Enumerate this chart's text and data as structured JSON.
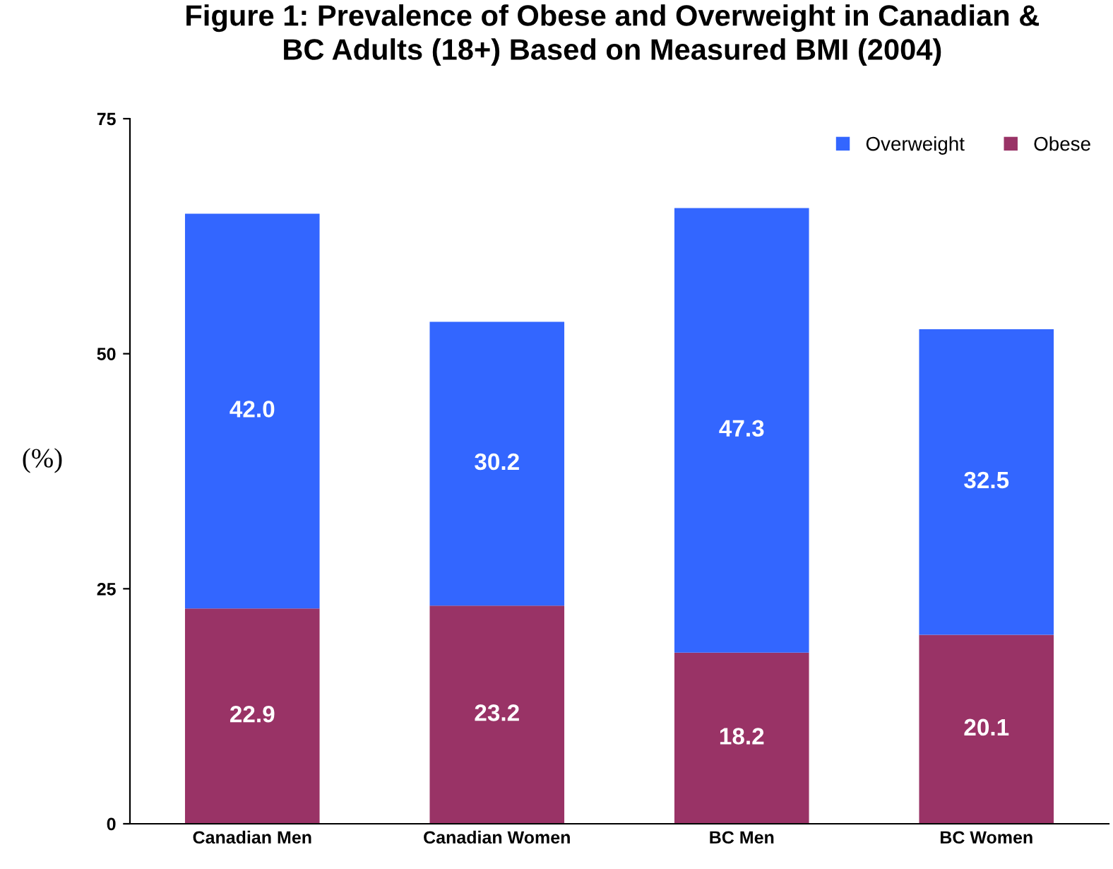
{
  "chart_data": {
    "type": "bar",
    "title": "Figure 1: Prevalence of Obese and Overweight in Canadian &\nBC Adults (18+) Based on Measured BMI (2004)",
    "ylabel": "(%)",
    "categories": [
      "Canadian Men",
      "Canadian Women",
      "BC Men",
      "BC Women"
    ],
    "series": [
      {
        "name": "Obese",
        "color": "#993366",
        "values": [
          22.9,
          23.2,
          18.2,
          20.1
        ],
        "value_labels": [
          "22.9",
          "23.2",
          "18.2",
          "20.1"
        ]
      },
      {
        "name": "Overweight",
        "color": "#3366ff",
        "values": [
          42.0,
          30.2,
          47.3,
          32.5
        ],
        "value_labels": [
          "42.0",
          "30.2",
          "47.3",
          "32.5"
        ]
      }
    ],
    "stacked": true,
    "ylim": [
      0,
      75
    ],
    "yticks": [
      0,
      25,
      50,
      75
    ],
    "grid": false,
    "legend": "top right"
  }
}
